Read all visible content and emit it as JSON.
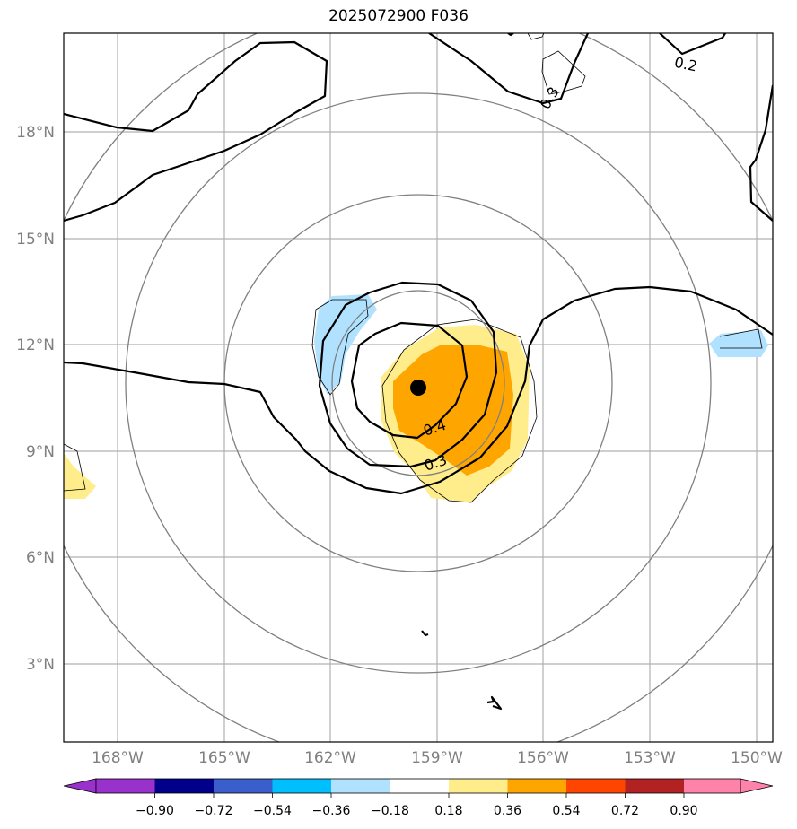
{
  "title": "2025072900 F036",
  "map": {
    "lat_labels": [
      "18°N",
      "15°N",
      "12°N",
      "9°N",
      "6°N",
      "3°N"
    ],
    "lon_labels": [
      "168°W",
      "165°W",
      "162°W",
      "159°W",
      "156°W",
      "153°W",
      "150°W"
    ],
    "contour_labels": [
      {
        "text": "0.4"
      },
      {
        "text": "0.3"
      },
      {
        "text": "0.2"
      },
      {
        "text": "0.3"
      }
    ],
    "storm_center": {
      "lat": 10.8,
      "lon": -159.5
    }
  },
  "colorbar": {
    "colors": [
      "#9932cc",
      "#00008b",
      "#3a5fcd",
      "#00bfff",
      "#b0e2ff",
      "#ffffff",
      "#ffec8b",
      "#ffa500",
      "#ff4500",
      "#b22222",
      "#ff82ab"
    ],
    "tick_labels": [
      "−0.90",
      "−0.72",
      "−0.54",
      "−0.36",
      "−0.18",
      "0.18",
      "0.36",
      "0.54",
      "0.72",
      "0.90"
    ]
  }
}
